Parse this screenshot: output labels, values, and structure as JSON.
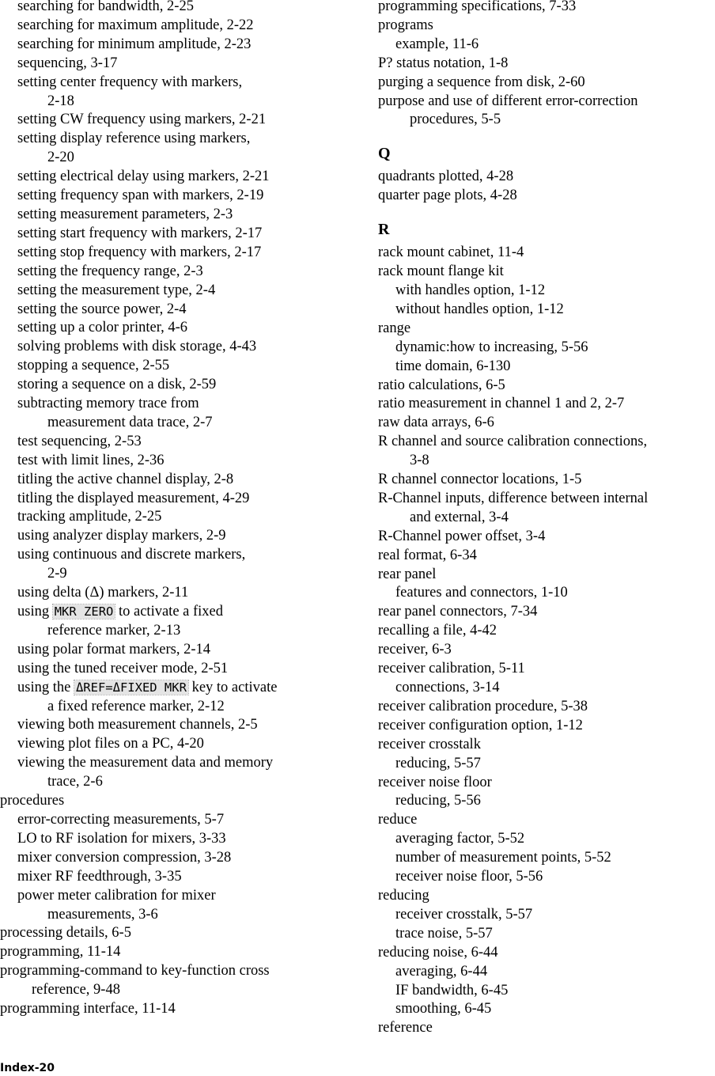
{
  "left": [
    {
      "l": 1,
      "t": "searching for bandwidth, 2-25"
    },
    {
      "l": 1,
      "t": "searching for maximum amplitude, 2-22"
    },
    {
      "l": 1,
      "t": "searching for minimum amplitude, 2-23"
    },
    {
      "l": 1,
      "t": "sequencing, 3-17"
    },
    {
      "l": 1,
      "t": "setting center frequency with markers,",
      "c": "2-18"
    },
    {
      "l": 1,
      "t": "setting CW frequency using markers, 2-21"
    },
    {
      "l": 1,
      "t": "setting display reference using markers,",
      "c": "2-20"
    },
    {
      "l": 1,
      "t": "setting electrical delay using markers, 2-21"
    },
    {
      "l": 1,
      "t": "setting frequency span with markers, 2-19"
    },
    {
      "l": 1,
      "t": "setting measurement parameters, 2-3"
    },
    {
      "l": 1,
      "t": "setting start frequency with markers, 2-17"
    },
    {
      "l": 1,
      "t": "setting stop frequency with markers, 2-17"
    },
    {
      "l": 1,
      "t": "setting the frequency range, 2-3"
    },
    {
      "l": 1,
      "t": "setting the measurement type, 2-4"
    },
    {
      "l": 1,
      "t": "setting the source power, 2-4"
    },
    {
      "l": 1,
      "t": "setting up a color printer, 4-6"
    },
    {
      "l": 1,
      "t": "solving problems with disk storage, 4-43"
    },
    {
      "l": 1,
      "t": "stopping a sequence, 2-55"
    },
    {
      "l": 1,
      "t": "storing a sequence on a disk, 2-59"
    },
    {
      "l": 1,
      "t": "subtracting  memory  trace  from",
      "c": "measurement data trace, 2-7"
    },
    {
      "l": 1,
      "t": "test sequencing, 2-53"
    },
    {
      "l": 1,
      "t": "test with limit lines, 2-36"
    },
    {
      "l": 1,
      "t": "titling the active channel display, 2-8"
    },
    {
      "l": 1,
      "t": "titling the displayed measurement, 4-29"
    },
    {
      "l": 1,
      "t": "tracking amplitude, 2-25"
    },
    {
      "l": 1,
      "t": "using analyzer display markers, 2-9"
    },
    {
      "l": 1,
      "t": "using continuous and discrete markers,",
      "c": "2-9"
    },
    {
      "l": 1,
      "t": "using delta (Δ) markers, 2-11"
    },
    {
      "l": 1,
      "t": "using ",
      "k": "MKR ZERO",
      "a": " to activate a fixed",
      "c": "reference marker, 2-13"
    },
    {
      "l": 1,
      "t": "using polar format markers, 2-14"
    },
    {
      "l": 1,
      "t": "using the tuned receiver mode, 2-51"
    },
    {
      "l": 1,
      "t": "using the ",
      "k": "ΔREF=ΔFIXED MKR",
      "a": " key to activate",
      "c": "a fixed reference marker, 2-12"
    },
    {
      "l": 1,
      "t": "viewing both measurement channels, 2-5"
    },
    {
      "l": 1,
      "t": "viewing plot files on a PC, 4-20"
    },
    {
      "l": 1,
      "t": "viewing the measurement data and memory",
      "c": "trace, 2-6"
    },
    {
      "l": 0,
      "t": "procedures"
    },
    {
      "l": 1,
      "t": "error-correcting measurements, 5-7"
    },
    {
      "l": 1,
      "t": "LO to RF isolation for mixers, 3-33"
    },
    {
      "l": 1,
      "t": "mixer conversion compression, 3-28"
    },
    {
      "l": 1,
      "t": "mixer RF feedthrough, 3-35"
    },
    {
      "l": 1,
      "t": "power  meter  calibration  for  mixer",
      "c": "measurements, 3-6"
    },
    {
      "l": 0,
      "t": "processing details, 6-5"
    },
    {
      "l": 0,
      "t": "programming, 11-14"
    },
    {
      "l": 0,
      "t": "programming-command to key-function cross",
      "c": "reference, 9-48"
    },
    {
      "l": 0,
      "t": "programming interface, 11-14"
    }
  ],
  "right": [
    {
      "l": 0,
      "t": "programming specifications, 7-33"
    },
    {
      "l": 0,
      "t": "programs"
    },
    {
      "l": 1,
      "t": "example, 11-6"
    },
    {
      "l": 0,
      "t": "P? status notation, 1-8"
    },
    {
      "l": 0,
      "t": "purging a sequence from disk, 2-60"
    },
    {
      "l": 0,
      "t": "purpose and use of different error-correction",
      "c": "procedures, 5-5"
    },
    {
      "h": "Q"
    },
    {
      "l": 0,
      "t": "quadrants plotted, 4-28"
    },
    {
      "l": 0,
      "t": "quarter page plots, 4-28"
    },
    {
      "h": "R"
    },
    {
      "l": 0,
      "t": "rack mount cabinet, 11-4"
    },
    {
      "l": 0,
      "t": "rack mount flange kit"
    },
    {
      "l": 1,
      "t": "with handles option, 1-12"
    },
    {
      "l": 1,
      "t": "without handles option, 1-12"
    },
    {
      "l": 0,
      "t": "range"
    },
    {
      "l": 1,
      "t": "dynamic:how to increasing, 5-56"
    },
    {
      "l": 1,
      "t": "time domain, 6-130"
    },
    {
      "l": 0,
      "t": "ratio calculations, 6-5"
    },
    {
      "l": 0,
      "t": "ratio measurement in channel 1 and 2, 2-7"
    },
    {
      "l": 0,
      "t": "raw data arrays, 6-6"
    },
    {
      "l": 0,
      "t": "R channel and source calibration connections,",
      "c": "3-8"
    },
    {
      "l": 0,
      "t": "R channel connector locations, 1-5"
    },
    {
      "l": 0,
      "t": "R-Channel inputs, difference between internal",
      "c": "and external, 3-4"
    },
    {
      "l": 0,
      "t": "R-Channel power offset, 3-4"
    },
    {
      "l": 0,
      "t": "real format, 6-34"
    },
    {
      "l": 0,
      "t": "rear panel"
    },
    {
      "l": 1,
      "t": "features and connectors, 1-10"
    },
    {
      "l": 0,
      "t": "rear panel connectors, 7-34"
    },
    {
      "l": 0,
      "t": "recalling a file, 4-42"
    },
    {
      "l": 0,
      "t": "receiver, 6-3"
    },
    {
      "l": 0,
      "t": "receiver calibration, 5-11"
    },
    {
      "l": 1,
      "t": "connections, 3-14"
    },
    {
      "l": 0,
      "t": "receiver calibration procedure, 5-38"
    },
    {
      "l": 0,
      "t": "receiver configuration option, 1-12"
    },
    {
      "l": 0,
      "t": "receiver crosstalk"
    },
    {
      "l": 1,
      "t": "reducing, 5-57"
    },
    {
      "l": 0,
      "t": "receiver noise floor"
    },
    {
      "l": 1,
      "t": "reducing, 5-56"
    },
    {
      "l": 0,
      "t": "reduce"
    },
    {
      "l": 1,
      "t": "averaging factor, 5-52"
    },
    {
      "l": 1,
      "t": "number of measurement points, 5-52"
    },
    {
      "l": 1,
      "t": "receiver noise floor, 5-56"
    },
    {
      "l": 0,
      "t": "reducing"
    },
    {
      "l": 1,
      "t": "receiver crosstalk, 5-57"
    },
    {
      "l": 1,
      "t": "trace noise, 5-57"
    },
    {
      "l": 0,
      "t": "reducing noise, 6-44"
    },
    {
      "l": 1,
      "t": "averaging, 6-44"
    },
    {
      "l": 1,
      "t": "IF bandwidth, 6-45"
    },
    {
      "l": 1,
      "t": "smoothing, 6-45"
    },
    {
      "l": 0,
      "t": "reference"
    }
  ],
  "footer": "Index-20"
}
